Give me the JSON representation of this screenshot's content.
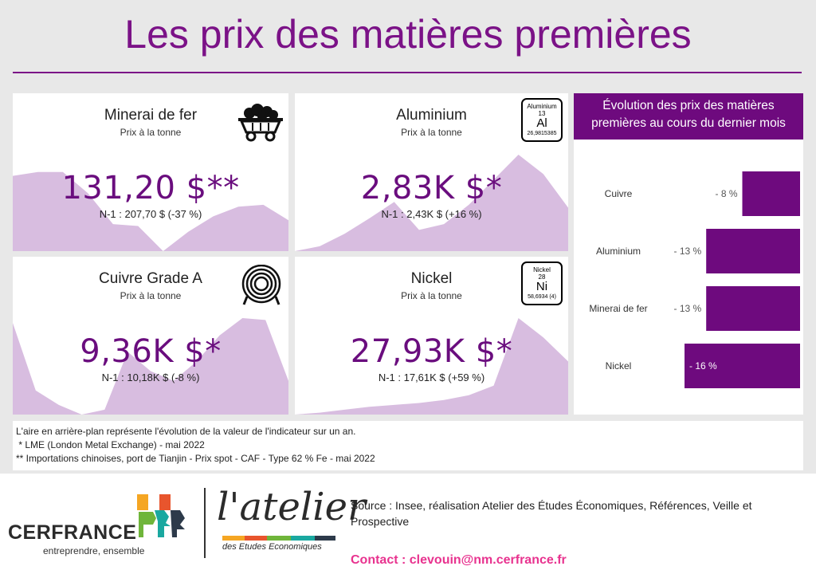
{
  "page": {
    "title": "Les prix des matières premières"
  },
  "cards": [
    {
      "name": "Minerai de fer",
      "subtitle": "Prix à la tonne",
      "value": "131,20 $**",
      "previous": "N-1 : 207,70 $ (-37 %)",
      "icon": "mine-cart-icon",
      "area_profile": [
        0.78,
        0.82,
        0.82,
        0.6,
        0.28,
        0.26,
        0.0,
        0.2,
        0.36,
        0.46,
        0.48,
        0.32
      ]
    },
    {
      "name": "Aluminium",
      "subtitle": "Prix à la tonne",
      "value": "2,83K $*",
      "previous": "N-1 : 2,43K $ (+16 %)",
      "icon": "element-tile-icon",
      "element": {
        "name": "Aluminium",
        "number": "13",
        "symbol": "Al",
        "mass": "26,9815385"
      },
      "area_profile": [
        0.0,
        0.05,
        0.18,
        0.34,
        0.51,
        0.22,
        0.28,
        0.48,
        0.74,
        1.0,
        0.8,
        0.45
      ]
    },
    {
      "name": "Cuivre Grade A",
      "subtitle": "Prix à la tonne",
      "value": "9,36K $*",
      "previous": "N-1 : 10,18K $ (-8 %)",
      "icon": "copper-coil-icon",
      "area_profile": [
        0.95,
        0.25,
        0.1,
        0.0,
        0.05,
        0.65,
        0.45,
        0.35,
        0.55,
        0.82,
        1.0,
        0.98,
        0.35
      ]
    },
    {
      "name": "Nickel",
      "subtitle": "Prix à la tonne",
      "value": "27,93K $*",
      "previous": "N-1 : 17,61K $ (+59 %)",
      "icon": "element-tile-icon",
      "element": {
        "name": "Nickel",
        "number": "28",
        "symbol": "Ni",
        "mass": "58,6934 (4)"
      },
      "area_profile": [
        0.0,
        0.02,
        0.05,
        0.08,
        0.1,
        0.12,
        0.15,
        0.2,
        0.3,
        1.0,
        0.8,
        0.55
      ]
    }
  ],
  "bar_panel": {
    "title": "Évolution des prix des matières premières au cours du dernier mois",
    "accent_color": "#6e0a7e"
  },
  "chart_data": {
    "type": "bar",
    "orientation": "horizontal",
    "title": "Évolution des prix des matières premières au cours du dernier mois",
    "categories": [
      "Cuivre",
      "Aluminium",
      "Minerai de fer",
      "Nickel"
    ],
    "values": [
      -8,
      -13,
      -13,
      -16
    ],
    "data_labels": [
      "- 8 %",
      "- 13 %",
      "- 13 %",
      "- 16 %"
    ],
    "unit": "%",
    "xlim": [
      -16,
      0
    ],
    "grid": false
  },
  "notes": [
    "L'aire en arrière-plan représente l'évolution de la valeur de l'indicateur sur un an.",
    " * LME (London Metal Exchange) - mai 2022",
    "** Importations chinoises, port de Tianjin - Prix spot - CAF - Type 62 % Fe - mai 2022"
  ],
  "footer": {
    "cerfrance": {
      "name": "CERFRANCE",
      "tagline": "entreprendre, ensemble",
      "logo_icon": "cerfrance-logo-icon"
    },
    "atelier": {
      "name": "l'atelier",
      "subtitle": "des Etudes Economiques"
    },
    "source": "Source : Insee, réalisation Atelier des Études Économiques, Références, Veille et Prospective",
    "contact": "Contact : clevouin@nm.cerfrance.fr"
  },
  "colors": {
    "brand_purple": "#7b1287",
    "value_purple": "#6a0d7e",
    "area_fill": "#d8bde0",
    "contact_pink": "#e8338f"
  }
}
